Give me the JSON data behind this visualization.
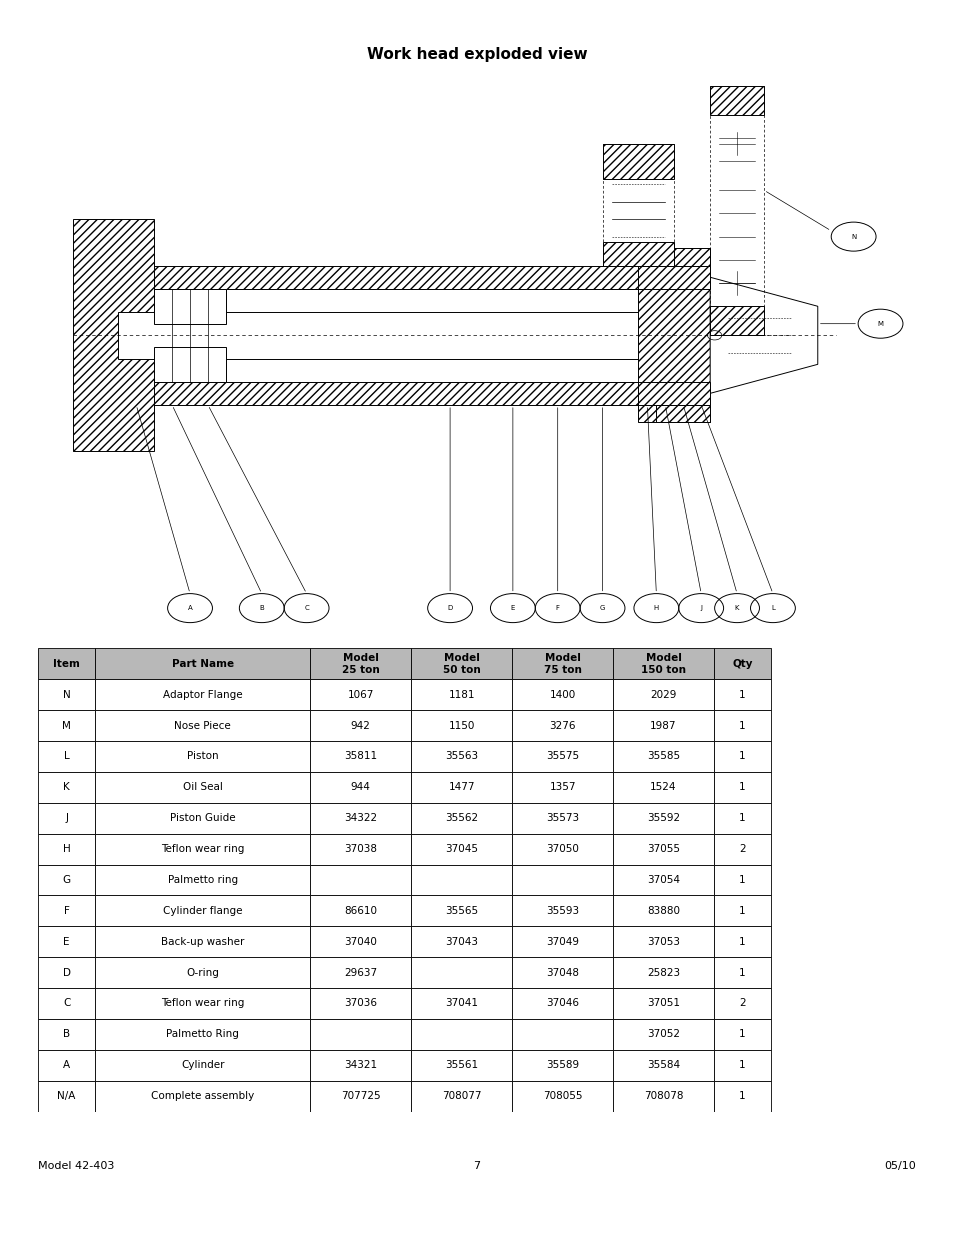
{
  "title": "Work head exploded view",
  "table_headers": [
    "Item",
    "Part Name",
    "Model\n25 ton",
    "Model\n50 ton",
    "Model\n75 ton",
    "Model\n150 ton",
    "Qty"
  ],
  "table_rows": [
    [
      "N",
      "Adaptor Flange",
      "1067",
      "1181",
      "1400",
      "2029",
      "1"
    ],
    [
      "M",
      "Nose Piece",
      "942",
      "1150",
      "3276",
      "1987",
      "1"
    ],
    [
      "L",
      "Piston",
      "35811",
      "35563",
      "35575",
      "35585",
      "1"
    ],
    [
      "K",
      "Oil Seal",
      "944",
      "1477",
      "1357",
      "1524",
      "1"
    ],
    [
      "J",
      "Piston Guide",
      "34322",
      "35562",
      "35573",
      "35592",
      "1"
    ],
    [
      "H",
      "Teflon wear ring",
      "37038",
      "37045",
      "37050",
      "37055",
      "2"
    ],
    [
      "G",
      "Palmetto ring",
      "",
      "",
      "",
      "37054",
      "1"
    ],
    [
      "F",
      "Cylinder flange",
      "86610",
      "35565",
      "35593",
      "83880",
      "1"
    ],
    [
      "E",
      "Back-up washer",
      "37040",
      "37043",
      "37049",
      "37053",
      "1"
    ],
    [
      "D",
      "O-ring",
      "29637",
      "",
      "37048",
      "25823",
      "1"
    ],
    [
      "C",
      "Teflon wear ring",
      "37036",
      "37041",
      "37046",
      "37051",
      "2"
    ],
    [
      "B",
      "Palmetto Ring",
      "",
      "",
      "",
      "37052",
      "1"
    ],
    [
      "A",
      "Cylinder",
      "34321",
      "35561",
      "35589",
      "35584",
      "1"
    ],
    [
      "N/A",
      "Complete assembly",
      "707725",
      "708077",
      "708055",
      "708078",
      "1"
    ]
  ],
  "footer_left": "Model 42-403",
  "footer_center": "7",
  "footer_right": "05/10",
  "bg_color": "#ffffff",
  "header_bg": "#b8b8b8",
  "row_bg_normal": "#ffffff",
  "border_color": "#000000"
}
